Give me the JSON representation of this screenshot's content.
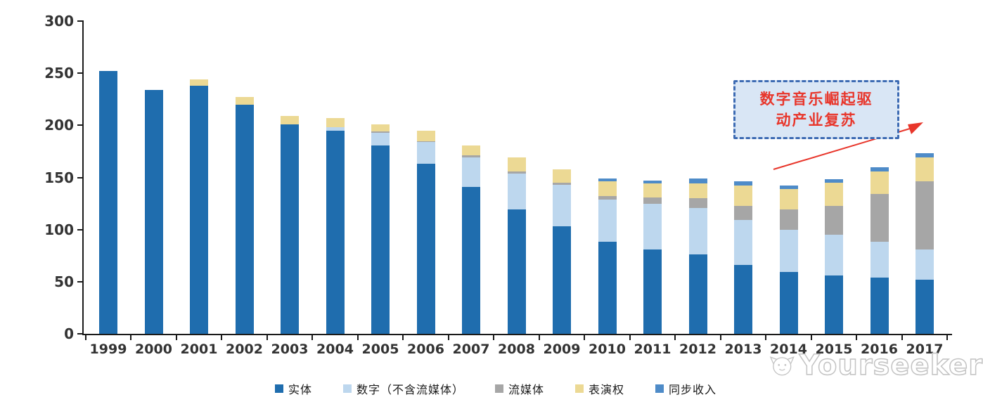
{
  "chart_data": {
    "type": "bar",
    "stacked": true,
    "title": "",
    "xlabel": "",
    "ylabel": "",
    "ylim": [
      0,
      300
    ],
    "yticks": [
      "0",
      "50",
      "100",
      "150",
      "200",
      "250",
      "300"
    ],
    "grid": false,
    "legend_position": "bottom",
    "categories": [
      "1999",
      "2000",
      "2001",
      "2002",
      "2003",
      "2004",
      "2005",
      "2006",
      "2007",
      "2008",
      "2009",
      "2010",
      "2011",
      "2012",
      "2013",
      "2014",
      "2015",
      "2016",
      "2017"
    ],
    "series": [
      {
        "name": "实体",
        "color": "#1f6dae",
        "values": [
          252,
          234,
          238,
          220,
          201,
          195,
          181,
          163,
          141,
          119,
          103,
          88,
          81,
          76,
          66,
          59,
          56,
          54,
          52
        ]
      },
      {
        "name": "数字（不含流媒体）",
        "color": "#bdd7ee",
        "values": [
          0,
          0,
          0,
          0,
          0,
          3,
          12,
          21,
          28,
          35,
          40,
          41,
          44,
          45,
          43,
          41,
          39,
          34,
          29
        ]
      },
      {
        "name": "流媒体",
        "color": "#a6a6a6",
        "values": [
          0,
          0,
          0,
          0,
          0,
          0,
          1,
          1,
          2,
          2,
          2,
          3,
          6,
          9,
          14,
          19,
          28,
          46,
          65
        ]
      },
      {
        "name": "表演权",
        "color": "#ecd994",
        "values": [
          0,
          0,
          6,
          7,
          8,
          9,
          7,
          10,
          10,
          13,
          13,
          14,
          13,
          14,
          19,
          20,
          22,
          22,
          23
        ]
      },
      {
        "name": "同步收入",
        "color": "#4e8bc8",
        "values": [
          0,
          0,
          0,
          0,
          0,
          0,
          0,
          0,
          0,
          0,
          0,
          3,
          3,
          5,
          4,
          3,
          3,
          4,
          4
        ]
      }
    ]
  },
  "annotation": {
    "line1": "数字音乐崛起驱",
    "line2": "动产业复苏",
    "text_color": "#e8362b",
    "box_fill": "#d9e6f5",
    "box_border": "#3d6bb3",
    "arrow_color": "#e8362b"
  },
  "watermark": {
    "text": "Yourseeker",
    "logo": "cat-logo",
    "color": "#c3c3c3"
  }
}
